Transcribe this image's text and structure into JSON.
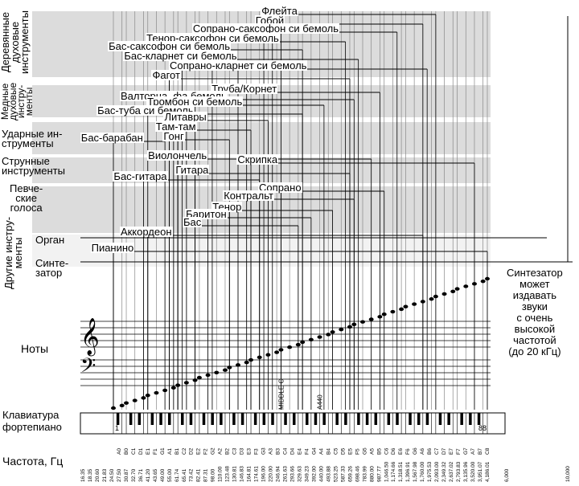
{
  "categories": {
    "woodwinds": "Деревянные\nдуховые\nинструменты",
    "brass": "Медные\nдуховые\nинстру-\nменты",
    "percussion": "Ударные ин-\nструменты",
    "strings": "Струнные\nинструменты",
    "voices": "Певче-\nские\nголоса",
    "other": "Другие инстру-\nменты",
    "organ": "Орган",
    "synth": "Синте-\nзатор"
  },
  "instruments": [
    {
      "name": "Флейта",
      "range": [
        "C4",
        "C7"
      ]
    },
    {
      "name": "Гобой",
      "range": [
        "A#3",
        "A6"
      ]
    },
    {
      "name": "Сопрано-саксофон си бемоль",
      "range": [
        "G#3",
        "D#6"
      ]
    },
    {
      "name": "Тенор-саксофон си бемоль",
      "range": [
        "G#2",
        "D#5"
      ]
    },
    {
      "name": "Бас-саксофон си бемоль",
      "range": [
        "A#1",
        "F4"
      ]
    },
    {
      "name": "Бас-кларнет си бемоль",
      "range": [
        "C#2",
        "F#5"
      ]
    },
    {
      "name": "Сопрано-кларнет си бемоль",
      "range": [
        "D3",
        "A#6"
      ]
    },
    {
      "name": "Фагот",
      "range": [
        "A#1",
        "E5"
      ]
    },
    {
      "name": "Труба/Корнет",
      "range": [
        "E3",
        "B5"
      ]
    },
    {
      "name": "Валторна, фа бемоль",
      "range": [
        "B1",
        "F5"
      ]
    },
    {
      "name": "Тромбон си бемоль",
      "range": [
        "E2",
        "A#4"
      ]
    },
    {
      "name": "Бас-туба си бемоль",
      "range": [
        "F1",
        "F4"
      ]
    },
    {
      "name": "Литавры",
      "range": [
        "D2",
        "A3"
      ]
    },
    {
      "name": "Там-там",
      "range": [
        "C2",
        "F3"
      ]
    },
    {
      "name": "Гонг",
      "range": [
        "C2",
        "C3"
      ]
    },
    {
      "name": "Бас-барабан",
      "range": [
        "A0",
        "A1"
      ]
    },
    {
      "name": "Скрипка",
      "range": [
        "G3",
        "A7"
      ]
    },
    {
      "name": "Виолончель",
      "range": [
        "C2",
        "A5"
      ]
    },
    {
      "name": "Гитара",
      "range": [
        "E2",
        "E5"
      ]
    },
    {
      "name": "Бас-гитара",
      "range": [
        "E1",
        "G3"
      ]
    },
    {
      "name": "Сопрано",
      "range": [
        "C4",
        "C6"
      ]
    },
    {
      "name": "Контральт",
      "range": [
        "F3",
        "F5"
      ]
    },
    {
      "name": "Тенор",
      "range": [
        "C3",
        "C5"
      ]
    },
    {
      "name": "Баритон",
      "range": [
        "G2",
        "G4"
      ]
    },
    {
      "name": "Бас",
      "range": [
        "E2",
        "E4"
      ]
    },
    {
      "name": "Аккордеон",
      "range": [
        "F1",
        "A6"
      ]
    },
    {
      "name": "Пианино",
      "range": [
        "A0",
        "C8"
      ]
    }
  ],
  "notes_label": "Ноты",
  "keyboard_label": "Клавиатура\nфортепиано",
  "key_markers": {
    "low": "1",
    "high": "88"
  },
  "frequency_label": "Частота, Гц",
  "middle_c_label": "MIDDLE C",
  "a440_label": "A440",
  "synth_note": "Синтезатор\nможет\nиздавать\nзвуки\nс очень\nвысокой\nчастотой\n(до 20 кГц)",
  "frequency_ticks": [
    {
      "freq": "16.35",
      "note": ""
    },
    {
      "freq": "18.35",
      "note": ""
    },
    {
      "freq": "20.60",
      "note": ""
    },
    {
      "freq": "21.83",
      "note": ""
    },
    {
      "freq": "24.50",
      "note": ""
    },
    {
      "freq": "27.50",
      "note": "A0"
    },
    {
      "freq": "30.87",
      "note": "B0"
    },
    {
      "freq": "32.70",
      "note": "C1"
    },
    {
      "freq": "36.71",
      "note": "D1"
    },
    {
      "freq": "41.20",
      "note": "E1"
    },
    {
      "freq": "43.65",
      "note": "F1"
    },
    {
      "freq": "49.00",
      "note": "G1"
    },
    {
      "freq": "55.00",
      "note": "A1"
    },
    {
      "freq": "61.74",
      "note": "B1"
    },
    {
      "freq": "65.41",
      "note": "C2"
    },
    {
      "freq": "73.42",
      "note": "D2"
    },
    {
      "freq": "82.41",
      "note": "E2"
    },
    {
      "freq": "87.31",
      "note": "F2"
    },
    {
      "freq": "98.00",
      "note": "G2"
    },
    {
      "freq": "110.00",
      "note": "A2"
    },
    {
      "freq": "123.48",
      "note": "B2"
    },
    {
      "freq": "130.81",
      "note": "C3"
    },
    {
      "freq": "146.83",
      "note": "D3"
    },
    {
      "freq": "164.81",
      "note": "E3"
    },
    {
      "freq": "174.61",
      "note": "F3"
    },
    {
      "freq": "196.00",
      "note": "G3"
    },
    {
      "freq": "220.00",
      "note": "A3"
    },
    {
      "freq": "246.94",
      "note": "B3"
    },
    {
      "freq": "261.63",
      "note": "C4"
    },
    {
      "freq": "293.66",
      "note": "D4"
    },
    {
      "freq": "329.63",
      "note": "E4"
    },
    {
      "freq": "349.23",
      "note": "F4"
    },
    {
      "freq": "392.00",
      "note": "G4"
    },
    {
      "freq": "440.00",
      "note": "A4"
    },
    {
      "freq": "493.88",
      "note": "B4"
    },
    {
      "freq": "523.25",
      "note": "C5"
    },
    {
      "freq": "587.33",
      "note": "D5"
    },
    {
      "freq": "659.26",
      "note": "E5"
    },
    {
      "freq": "698.46",
      "note": "F5"
    },
    {
      "freq": "783.99",
      "note": "G5"
    },
    {
      "freq": "880.00",
      "note": "A5"
    },
    {
      "freq": "987.77",
      "note": "B5"
    },
    {
      "freq": "1,046.50",
      "note": "C6"
    },
    {
      "freq": "1,174.66",
      "note": "D6"
    },
    {
      "freq": "1,318.51",
      "note": "E6"
    },
    {
      "freq": "1,396.91",
      "note": "F6"
    },
    {
      "freq": "1,567.98",
      "note": "G6"
    },
    {
      "freq": "1,760.00",
      "note": "A6"
    },
    {
      "freq": "1,975.53",
      "note": "B6"
    },
    {
      "freq": "2,093.00",
      "note": "C7"
    },
    {
      "freq": "2,349.32",
      "note": "D7"
    },
    {
      "freq": "2,637.02",
      "note": "E7"
    },
    {
      "freq": "2,793.83",
      "note": "F7"
    },
    {
      "freq": "3,135.96",
      "note": "G7"
    },
    {
      "freq": "3,520.00",
      "note": "A7"
    },
    {
      "freq": "3,951.07",
      "note": "B7"
    },
    {
      "freq": "4,186.01",
      "note": "C8"
    }
  ],
  "extra_ticks": [
    "6,000",
    "10,000"
  ],
  "colors": {
    "band": "#dcdcdc",
    "line": "#000000",
    "grid": "#888888"
  }
}
